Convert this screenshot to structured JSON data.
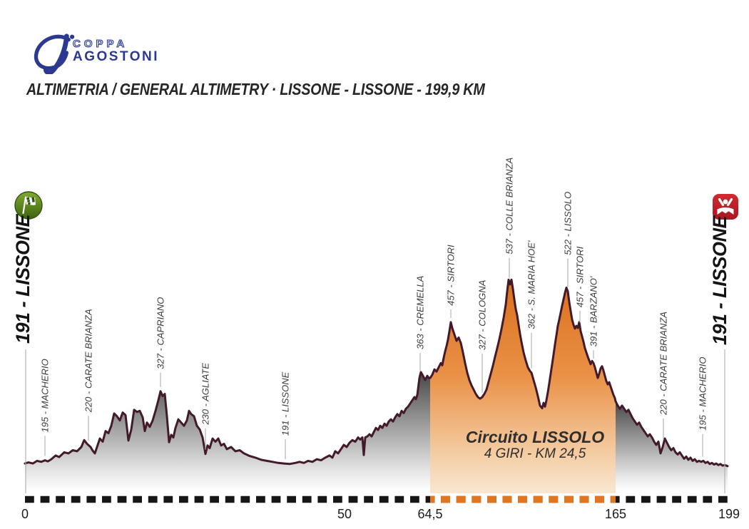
{
  "header": {
    "logo": {
      "monogram": "A'",
      "line1": "COPPA",
      "line2": "AGOSTONI",
      "color": "#2b3990"
    },
    "title": "ALTIMETRIA / GENERAL ALTIMETRY  ·  LISSONE - LISSONE - 199,9 KM"
  },
  "endpoints": {
    "start": {
      "label": "191 - LISSONE",
      "icon": "checkered-flag-icon",
      "icon_color": "#4e7d1a"
    },
    "finish": {
      "label": "191 - LISSONE",
      "icon": "winner-icon",
      "icon_color": "#c4202d"
    }
  },
  "circuit": {
    "name": "Circuito LISSOLO",
    "detail": "4 GIRI - KM 24,5",
    "dx_start": 568,
    "dx_end": 828
  },
  "colors": {
    "profile_line": "#421a2c",
    "circuit_orange": "#e0761f",
    "circuit_orange_dark": "#d9701c",
    "circuit_orange_pale": "#f9e7d2",
    "gray_top": "#474747",
    "leader_gray": "#b3b3b3",
    "dash_black": "#161616",
    "tick_text": "#1c1c1c",
    "label_text": "#3d3d3d",
    "logo_blue": "#2b3990"
  },
  "chart_data": {
    "type": "area",
    "title": "General altimetry Lissone - Lissone 199,9 km",
    "x_unit": "km",
    "y_unit": "m a.s.l.",
    "elev_range": [
      175,
      560
    ],
    "grid": false,
    "note": "x axis is non linear: the Lissolo circuit (km 64,5 - 165, 4 laps of 24,5 km) is drawn once",
    "x_ticks": [
      {
        "label": "0",
        "dx": 0
      },
      {
        "label": "50",
        "dx": 448
      },
      {
        "label": "64,5",
        "dx": 568
      },
      {
        "label": "165",
        "dx": 828
      },
      {
        "label": "199",
        "dx": 987
      }
    ],
    "waypoints": [
      {
        "label": "195 - MACHERIO",
        "elev": 195,
        "name": "Macherio",
        "dx": 28,
        "leader": 28
      },
      {
        "label": "220 - CARATE BRIANZA",
        "elev": 220,
        "name": "Carate Brianza",
        "dx": 89,
        "leader": 35
      },
      {
        "label": "327 - CAPRIANO",
        "elev": 327,
        "name": "Capriano",
        "dx": 190,
        "leader": 20
      },
      {
        "label": "230 - AGLIATE",
        "elev": 230,
        "name": "Agliate",
        "dx": 253,
        "leader": 30
      },
      {
        "label": "191 - LISSONE",
        "elev": 191,
        "name": "Lissone",
        "dx": 365,
        "leader": 28
      },
      {
        "label": "363 - CREMELLA",
        "elev": 363,
        "name": "Cremella",
        "dx": 554,
        "leader": 25
      },
      {
        "label": "457 - SIRTORI",
        "elev": 457,
        "name": "Sirtori",
        "dx": 597,
        "leader": 12
      },
      {
        "label": "327 - COLOGNA",
        "elev": 327,
        "name": "Cologna",
        "dx": 641,
        "leader": 55
      },
      {
        "label": "537 - COLLE BRIANZA",
        "elev": 537,
        "name": "Colle Brianza",
        "dx": 679,
        "leader": 28
      },
      {
        "label": "362 - S. MARIA HOE'",
        "elev": 362,
        "name": "S. Maria Hoe'",
        "dx": 710,
        "leader": 50
      },
      {
        "label": "522 - LISSOLO",
        "elev": 522,
        "name": "Lissolo",
        "dx": 761,
        "leader": 40
      },
      {
        "label": "457 - SIRTORI",
        "elev": 457,
        "name": "Sirtori",
        "dx": 778,
        "leader": 16
      },
      {
        "label": "391 - BARZANO'",
        "elev": 391,
        "name": "Barzano'",
        "dx": 797,
        "leader": 12
      },
      {
        "label": "220 - CARATE BRIANZA",
        "elev": 220,
        "name": "Carate Brianza",
        "dx": 895,
        "leader": 30
      },
      {
        "label": "195 - MACHERIO",
        "elev": 195,
        "name": "Macherio",
        "dx": 950,
        "leader": 32
      }
    ],
    "profile": [
      [
        0,
        191
      ],
      [
        5,
        193
      ],
      [
        11,
        191
      ],
      [
        17,
        196
      ],
      [
        23,
        194
      ],
      [
        28,
        197
      ],
      [
        32,
        195
      ],
      [
        37,
        199
      ],
      [
        43,
        206
      ],
      [
        48,
        203
      ],
      [
        55,
        212
      ],
      [
        61,
        210
      ],
      [
        67,
        216
      ],
      [
        73,
        214
      ],
      [
        79,
        222
      ],
      [
        83,
        235
      ],
      [
        87,
        228
      ],
      [
        92,
        222
      ],
      [
        95,
        215
      ],
      [
        98,
        210
      ],
      [
        101,
        222
      ],
      [
        105,
        238
      ],
      [
        109,
        232
      ],
      [
        113,
        252
      ],
      [
        117,
        248
      ],
      [
        121,
        262
      ],
      [
        125,
        285
      ],
      [
        129,
        280
      ],
      [
        133,
        272
      ],
      [
        137,
        287
      ],
      [
        141,
        282
      ],
      [
        145,
        234
      ],
      [
        149,
        255
      ],
      [
        153,
        292
      ],
      [
        157,
        288
      ],
      [
        161,
        290
      ],
      [
        165,
        278
      ],
      [
        168,
        252
      ],
      [
        171,
        268
      ],
      [
        175,
        260
      ],
      [
        179,
        272
      ],
      [
        183,
        290
      ],
      [
        187,
        310
      ],
      [
        190,
        327
      ],
      [
        193,
        318
      ],
      [
        196,
        322
      ],
      [
        199,
        280
      ],
      [
        202,
        231
      ],
      [
        205,
        245
      ],
      [
        208,
        240
      ],
      [
        211,
        258
      ],
      [
        215,
        274
      ],
      [
        219,
        268
      ],
      [
        223,
        262
      ],
      [
        227,
        272
      ],
      [
        230,
        290
      ],
      [
        233,
        284
      ],
      [
        237,
        280
      ],
      [
        241,
        262
      ],
      [
        245,
        255
      ],
      [
        249,
        240
      ],
      [
        253,
        209
      ],
      [
        256,
        225
      ],
      [
        259,
        220
      ],
      [
        263,
        238
      ],
      [
        267,
        232
      ],
      [
        271,
        238
      ],
      [
        275,
        225
      ],
      [
        279,
        228
      ],
      [
        283,
        218
      ],
      [
        289,
        222
      ],
      [
        295,
        214
      ],
      [
        301,
        216
      ],
      [
        307,
        210
      ],
      [
        315,
        205
      ],
      [
        323,
        202
      ],
      [
        331,
        198
      ],
      [
        339,
        196
      ],
      [
        347,
        194
      ],
      [
        355,
        192
      ],
      [
        363,
        191
      ],
      [
        371,
        190
      ],
      [
        379,
        192
      ],
      [
        385,
        194
      ],
      [
        391,
        192
      ],
      [
        397,
        196
      ],
      [
        403,
        194
      ],
      [
        409,
        199
      ],
      [
        415,
        197
      ],
      [
        421,
        202
      ],
      [
        427,
        206
      ],
      [
        431,
        202
      ],
      [
        435,
        214
      ],
      [
        439,
        210
      ],
      [
        443,
        218
      ],
      [
        447,
        226
      ],
      [
        451,
        222
      ],
      [
        455,
        230
      ],
      [
        459,
        235
      ],
      [
        463,
        232
      ],
      [
        467,
        240
      ],
      [
        470,
        236
      ],
      [
        473,
        240
      ],
      [
        475,
        207
      ],
      [
        477,
        240
      ],
      [
        480,
        242
      ],
      [
        483,
        246
      ],
      [
        486,
        242
      ],
      [
        489,
        250
      ],
      [
        492,
        258
      ],
      [
        495,
        254
      ],
      [
        498,
        262
      ],
      [
        501,
        258
      ],
      [
        504,
        266
      ],
      [
        507,
        262
      ],
      [
        510,
        270
      ],
      [
        513,
        274
      ],
      [
        516,
        270
      ],
      [
        519,
        278
      ],
      [
        522,
        284
      ],
      [
        525,
        280
      ],
      [
        528,
        290
      ],
      [
        531,
        286
      ],
      [
        534,
        294
      ],
      [
        537,
        298
      ],
      [
        540,
        304
      ],
      [
        543,
        310
      ],
      [
        546,
        316
      ],
      [
        548,
        312
      ],
      [
        550,
        320
      ],
      [
        553,
        352
      ],
      [
        555,
        363
      ],
      [
        558,
        356
      ],
      [
        561,
        348
      ],
      [
        564,
        356
      ],
      [
        566,
        352
      ],
      [
        568,
        352
      ],
      [
        571,
        358
      ],
      [
        574,
        368
      ],
      [
        577,
        364
      ],
      [
        580,
        372
      ],
      [
        583,
        380
      ],
      [
        585,
        376
      ],
      [
        587,
        390
      ],
      [
        589,
        402
      ],
      [
        591,
        412
      ],
      [
        593,
        424
      ],
      [
        595,
        440
      ],
      [
        597,
        457
      ],
      [
        599,
        446
      ],
      [
        601,
        438
      ],
      [
        603,
        430
      ],
      [
        605,
        422
      ],
      [
        608,
        428
      ],
      [
        611,
        418
      ],
      [
        614,
        400
      ],
      [
        617,
        380
      ],
      [
        620,
        362
      ],
      [
        623,
        348
      ],
      [
        626,
        338
      ],
      [
        629,
        330
      ],
      [
        632,
        322
      ],
      [
        635,
        316
      ],
      [
        638,
        313
      ],
      [
        641,
        316
      ],
      [
        644,
        322
      ],
      [
        647,
        330
      ],
      [
        650,
        345
      ],
      [
        653,
        360
      ],
      [
        656,
        375
      ],
      [
        659,
        392
      ],
      [
        662,
        408
      ],
      [
        665,
        425
      ],
      [
        668,
        444
      ],
      [
        671,
        465
      ],
      [
        674,
        490
      ],
      [
        676,
        515
      ],
      [
        678,
        537
      ],
      [
        680,
        528
      ],
      [
        682,
        537
      ],
      [
        684,
        520
      ],
      [
        686,
        500
      ],
      [
        688,
        482
      ],
      [
        690,
        470
      ],
      [
        692,
        452
      ],
      [
        694,
        435
      ],
      [
        696,
        420
      ],
      [
        699,
        400
      ],
      [
        702,
        385
      ],
      [
        705,
        372
      ],
      [
        708,
        365
      ],
      [
        710,
        362
      ],
      [
        713,
        348
      ],
      [
        716,
        334
      ],
      [
        719,
        318
      ],
      [
        722,
        300
      ],
      [
        725,
        295
      ],
      [
        727,
        305
      ],
      [
        729,
        298
      ],
      [
        731,
        310
      ],
      [
        733,
        325
      ],
      [
        735,
        342
      ],
      [
        737,
        360
      ],
      [
        739,
        378
      ],
      [
        741,
        396
      ],
      [
        743,
        415
      ],
      [
        745,
        432
      ],
      [
        747,
        450
      ],
      [
        749,
        462
      ],
      [
        751,
        475
      ],
      [
        753,
        488
      ],
      [
        755,
        500
      ],
      [
        757,
        512
      ],
      [
        759,
        522
      ],
      [
        761,
        515
      ],
      [
        763,
        495
      ],
      [
        765,
        478
      ],
      [
        767,
        462
      ],
      [
        769,
        452
      ],
      [
        771,
        445
      ],
      [
        773,
        450
      ],
      [
        775,
        446
      ],
      [
        777,
        457
      ],
      [
        779,
        440
      ],
      [
        781,
        430
      ],
      [
        783,
        420
      ],
      [
        785,
        408
      ],
      [
        787,
        400
      ],
      [
        789,
        392
      ],
      [
        791,
        385
      ],
      [
        793,
        378
      ],
      [
        795,
        384
      ],
      [
        797,
        380
      ],
      [
        799,
        372
      ],
      [
        801,
        362
      ],
      [
        803,
        352
      ],
      [
        805,
        360
      ],
      [
        807,
        370
      ],
      [
        809,
        374
      ],
      [
        811,
        366
      ],
      [
        813,
        356
      ],
      [
        815,
        346
      ],
      [
        817,
        340
      ],
      [
        819,
        344
      ],
      [
        821,
        336
      ],
      [
        823,
        328
      ],
      [
        825,
        320
      ],
      [
        827,
        314
      ],
      [
        828,
        308
      ],
      [
        831,
        300
      ],
      [
        834,
        294
      ],
      [
        837,
        300
      ],
      [
        840,
        294
      ],
      [
        843,
        288
      ],
      [
        846,
        292
      ],
      [
        849,
        284
      ],
      [
        852,
        276
      ],
      [
        855,
        270
      ],
      [
        858,
        264
      ],
      [
        861,
        268
      ],
      [
        864,
        260
      ],
      [
        867,
        254
      ],
      [
        870,
        248
      ],
      [
        873,
        242
      ],
      [
        876,
        246
      ],
      [
        879,
        240
      ],
      [
        882,
        232
      ],
      [
        885,
        226
      ],
      [
        888,
        232
      ],
      [
        891,
        210
      ],
      [
        894,
        222
      ],
      [
        897,
        238
      ],
      [
        900,
        230
      ],
      [
        903,
        222
      ],
      [
        906,
        216
      ],
      [
        909,
        220
      ],
      [
        912,
        212
      ],
      [
        915,
        208
      ],
      [
        918,
        212
      ],
      [
        921,
        206
      ],
      [
        924,
        200
      ],
      [
        927,
        204
      ],
      [
        930,
        198
      ],
      [
        933,
        202
      ],
      [
        936,
        196
      ],
      [
        939,
        199
      ],
      [
        942,
        194
      ],
      [
        945,
        196
      ],
      [
        948,
        194
      ],
      [
        951,
        196
      ],
      [
        954,
        192
      ],
      [
        957,
        194
      ],
      [
        960,
        190
      ],
      [
        963,
        192
      ],
      [
        966,
        189
      ],
      [
        969,
        191
      ],
      [
        972,
        188
      ],
      [
        975,
        190
      ],
      [
        978,
        187
      ],
      [
        981,
        188
      ],
      [
        985,
        186
      ]
    ]
  }
}
